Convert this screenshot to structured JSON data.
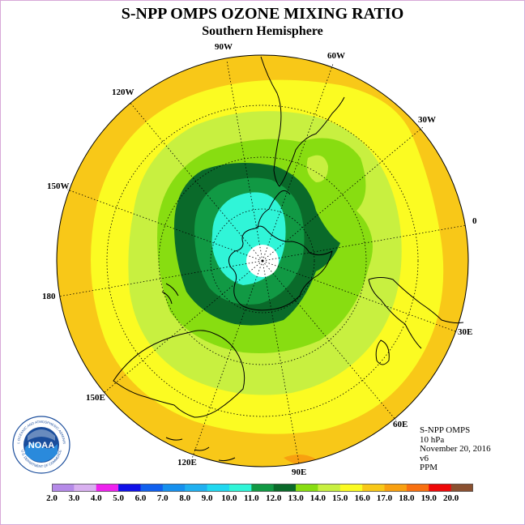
{
  "title": "S-NPP OMPS OZONE MIXING RATIO",
  "subtitle": "Southern Hemisphere",
  "longitude_labels": {
    "lon_90w": "90W",
    "lon_60w": "60W",
    "lon_30w": "30W",
    "lon_0": "0",
    "lon_30e": "30E",
    "lon_60e": "60E",
    "lon_90e": "90E",
    "lon_120e": "120E",
    "lon_150e": "150E",
    "lon_180": "180",
    "lon_150w": "150W",
    "lon_120w": "120W"
  },
  "info": {
    "instrument": "S-NPP OMPS",
    "level": "10 hPa",
    "date": "November 20, 2016",
    "version": "v6",
    "units": "PPM"
  },
  "logo": {
    "text": "NOAA",
    "ring_text": "NATIONAL OCEANIC AND ATMOSPHERIC ADMINISTRATION",
    "ring_text_bottom": "U.S. DEPARTMENT OF COMMERCE"
  },
  "colorbar": {
    "tick_labels": [
      "2.0",
      "3.0",
      "4.0",
      "5.0",
      "6.0",
      "7.0",
      "8.0",
      "9.0",
      "10.0",
      "11.0",
      "12.0",
      "13.0",
      "14.0",
      "15.0",
      "16.0",
      "17.0",
      "18.0",
      "19.0",
      "20.0"
    ],
    "colors": [
      "#b58ae8",
      "#d9b0f0",
      "#ee22ee",
      "#1010e8",
      "#1060ee",
      "#1690ee",
      "#20b0f0",
      "#20d8f0",
      "#30f5d8",
      "#119944",
      "#0a6a2a",
      "#88dd11",
      "#c8f040",
      "#fbfb22",
      "#f8c818",
      "#f8a010",
      "#f87010",
      "#ee0808",
      "#8a5030"
    ]
  },
  "map_colors": {
    "c16": "#f8c818",
    "c15": "#fbfb22",
    "c14": "#c8f040",
    "c13": "#88dd11",
    "c12": "#0a6a2a",
    "c11": "#119944",
    "c9": "#30f5d8",
    "c17": "#f8a010"
  }
}
